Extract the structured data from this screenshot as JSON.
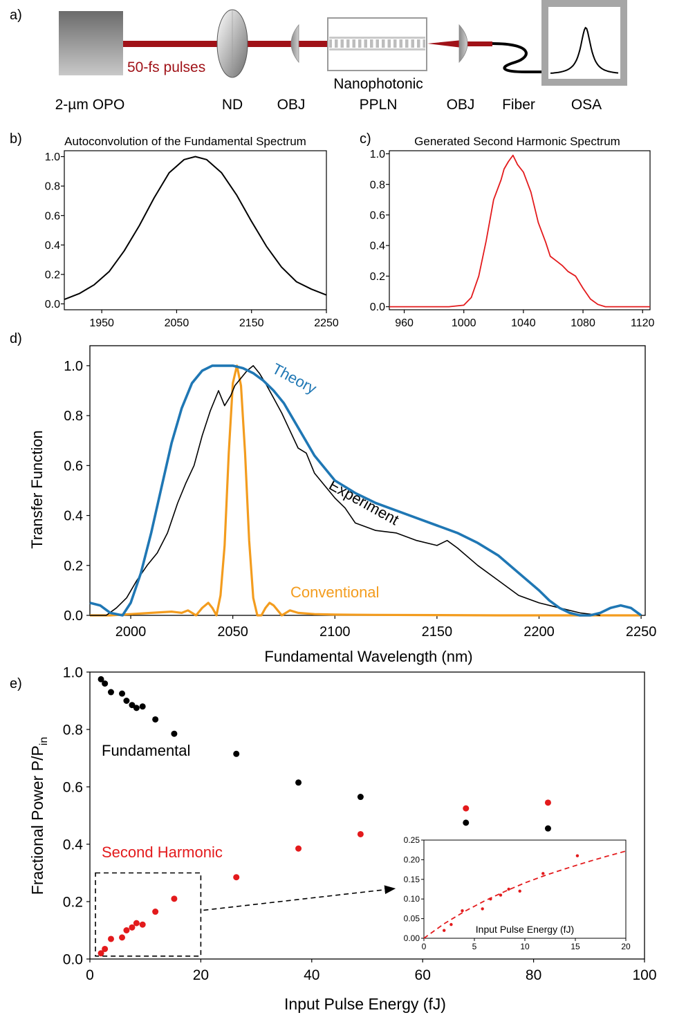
{
  "colors": {
    "black": "#000000",
    "red": "#e31a1c",
    "blue": "#1f77b4",
    "orange": "#f39c1e",
    "beam": "#a01218",
    "grey": "#a6a6a6"
  },
  "setup": {
    "panel_label": "a)",
    "pulse_label": "50-fs pulses",
    "components": [
      "2-µm OPO",
      "ND",
      "OBJ",
      "Nanophotonic",
      "PPLN",
      "OBJ",
      "Fiber",
      "OSA"
    ]
  },
  "chart_data": [
    {
      "id": "b",
      "panel_label": "b)",
      "type": "line",
      "title": "Autoconvolution of the Fundamental Spectrum",
      "xlabel": "",
      "ylabel": "",
      "xlim": [
        1900,
        2250
      ],
      "ylim": [
        -0.04,
        1.04
      ],
      "xticks": [
        1950,
        2050,
        2150,
        2250
      ],
      "yticks": [
        0.0,
        0.2,
        0.4,
        0.6,
        0.8,
        1.0
      ],
      "grid": false,
      "series": [
        {
          "x": [
            1900,
            1920,
            1940,
            1960,
            1980,
            2000,
            2020,
            2040,
            2060,
            2075,
            2090,
            2110,
            2130,
            2150,
            2170,
            2190,
            2210,
            2230,
            2250
          ],
          "y": [
            0.03,
            0.07,
            0.13,
            0.22,
            0.36,
            0.53,
            0.72,
            0.89,
            0.98,
            1.0,
            0.98,
            0.89,
            0.74,
            0.56,
            0.39,
            0.25,
            0.15,
            0.1,
            0.06
          ]
        }
      ]
    },
    {
      "id": "c",
      "panel_label": "c)",
      "type": "line",
      "title": "Generated Second Harmonic Spectrum",
      "xlabel": "",
      "ylabel": "",
      "xlim": [
        950,
        1125
      ],
      "ylim": [
        -0.02,
        1.02
      ],
      "xticks": [
        960,
        1000,
        1040,
        1080,
        1120
      ],
      "yticks": [
        0.0,
        0.2,
        0.4,
        0.6,
        0.8,
        1.0
      ],
      "grid": false,
      "series": [
        {
          "x": [
            950,
            990,
            1000,
            1005,
            1010,
            1015,
            1020,
            1025,
            1027,
            1030,
            1033,
            1036,
            1040,
            1045,
            1050,
            1055,
            1058,
            1062,
            1066,
            1070,
            1075,
            1080,
            1085,
            1090,
            1095,
            1100,
            1125
          ],
          "y": [
            0.0,
            0.0,
            0.01,
            0.06,
            0.2,
            0.43,
            0.7,
            0.83,
            0.9,
            0.95,
            0.99,
            0.93,
            0.88,
            0.75,
            0.55,
            0.42,
            0.33,
            0.3,
            0.27,
            0.23,
            0.2,
            0.12,
            0.05,
            0.015,
            0.0,
            0.0,
            0.0
          ]
        }
      ]
    },
    {
      "id": "d",
      "panel_label": "d)",
      "type": "line",
      "title": "",
      "xlabel": "Fundamental Wavelength (nm)",
      "ylabel": "Transfer Function",
      "xlim": [
        1980,
        2252
      ],
      "ylim": [
        0.0,
        1.08
      ],
      "xticks": [
        2000,
        2050,
        2100,
        2150,
        2200,
        2250
      ],
      "yticks": [
        0.0,
        0.2,
        0.4,
        0.6,
        0.8,
        1.0
      ],
      "grid": false,
      "series": [
        {
          "name": "Theory",
          "color": "blue",
          "x": [
            1980,
            1985,
            1990,
            1996,
            2000,
            2005,
            2010,
            2015,
            2020,
            2025,
            2030,
            2035,
            2040,
            2045,
            2050,
            2055,
            2060,
            2065,
            2070,
            2075,
            2080,
            2085,
            2090,
            2100,
            2110,
            2120,
            2130,
            2140,
            2150,
            2160,
            2170,
            2180,
            2190,
            2200,
            2205,
            2210,
            2215,
            2220,
            2225,
            2230,
            2235,
            2240,
            2245,
            2250
          ],
          "y": [
            0.05,
            0.04,
            0.01,
            0.0,
            0.05,
            0.17,
            0.33,
            0.51,
            0.69,
            0.83,
            0.93,
            0.98,
            1.0,
            1.0,
            1.0,
            0.99,
            0.97,
            0.94,
            0.9,
            0.85,
            0.78,
            0.71,
            0.64,
            0.54,
            0.49,
            0.45,
            0.42,
            0.39,
            0.36,
            0.33,
            0.29,
            0.24,
            0.17,
            0.1,
            0.06,
            0.03,
            0.01,
            0.0,
            0.0,
            0.01,
            0.03,
            0.04,
            0.03,
            0.0
          ]
        },
        {
          "name": "Experiment",
          "color": "black",
          "x": [
            1980,
            1988,
            1993,
            1998,
            2003,
            2008,
            2013,
            2018,
            2023,
            2027,
            2031,
            2035,
            2039,
            2043,
            2046,
            2049,
            2051,
            2054,
            2057,
            2060,
            2063,
            2066,
            2070,
            2074,
            2078,
            2082,
            2086,
            2090,
            2095,
            2100,
            2105,
            2110,
            2120,
            2130,
            2140,
            2150,
            2155,
            2160,
            2170,
            2180,
            2190,
            2200,
            2210,
            2220,
            2230
          ],
          "y": [
            0.0,
            0.0,
            0.03,
            0.07,
            0.14,
            0.2,
            0.25,
            0.33,
            0.45,
            0.53,
            0.6,
            0.72,
            0.82,
            0.9,
            0.84,
            0.88,
            0.92,
            0.95,
            0.98,
            1.0,
            0.97,
            0.93,
            0.87,
            0.81,
            0.74,
            0.67,
            0.65,
            0.57,
            0.52,
            0.47,
            0.43,
            0.37,
            0.34,
            0.33,
            0.3,
            0.28,
            0.3,
            0.27,
            0.2,
            0.14,
            0.08,
            0.05,
            0.03,
            0.01,
            0.0
          ]
        },
        {
          "name": "Conventional",
          "color": "orange",
          "x": [
            1980,
            1990,
            2000,
            2010,
            2020,
            2025,
            2028,
            2032,
            2035,
            2038,
            2040,
            2042,
            2044,
            2046,
            2048,
            2050,
            2052,
            2054,
            2056,
            2058,
            2060,
            2062,
            2064,
            2066,
            2068,
            2070,
            2072,
            2074,
            2078,
            2082,
            2090,
            2100,
            2120,
            2150,
            2180,
            2200,
            2220,
            2250
          ],
          "y": [
            0.0,
            0.0,
            0.005,
            0.01,
            0.015,
            0.01,
            0.02,
            0.0,
            0.03,
            0.05,
            0.03,
            0.0,
            0.08,
            0.28,
            0.65,
            0.93,
            1.0,
            0.92,
            0.65,
            0.3,
            0.07,
            0.0,
            0.0,
            0.03,
            0.05,
            0.04,
            0.02,
            0.0,
            0.02,
            0.01,
            0.005,
            0.003,
            0.002,
            0.001,
            0.0,
            0.0,
            0.0,
            0.0
          ]
        }
      ]
    },
    {
      "id": "e",
      "panel_label": "e)",
      "type": "scatter",
      "title": "",
      "xlabel": "Input Pulse Energy (fJ)",
      "ylabel_main": "Fractional Power P/P",
      "ylabel_sub": "in",
      "xlim": [
        0,
        100
      ],
      "ylim": [
        0.0,
        1.0
      ],
      "xticks": [
        0,
        20,
        40,
        60,
        80,
        100
      ],
      "yticks": [
        0.0,
        0.2,
        0.4,
        0.6,
        0.8,
        1.0
      ],
      "grid": false,
      "series": [
        {
          "name": "Fundamental",
          "color": "black",
          "x": [
            2.0,
            2.7,
            3.8,
            5.8,
            6.6,
            7.6,
            8.4,
            9.5,
            11.8,
            15.2,
            26.4,
            37.6,
            48.8,
            67.8,
            82.6
          ],
          "y": [
            0.975,
            0.96,
            0.93,
            0.925,
            0.9,
            0.885,
            0.875,
            0.88,
            0.835,
            0.785,
            0.715,
            0.615,
            0.565,
            0.475,
            0.455
          ]
        },
        {
          "name": "Second Harmonic",
          "color": "red",
          "x": [
            2.0,
            2.7,
            3.8,
            5.8,
            6.6,
            7.6,
            8.4,
            9.5,
            11.8,
            15.2,
            26.4,
            37.6,
            48.8,
            67.8,
            82.6
          ],
          "y": [
            0.02,
            0.035,
            0.07,
            0.075,
            0.1,
            0.11,
            0.125,
            0.12,
            0.165,
            0.21,
            0.285,
            0.385,
            0.435,
            0.525,
            0.545
          ]
        }
      ],
      "zoom_box": {
        "xlim": [
          1,
          20
        ],
        "ylim": [
          0.01,
          0.3
        ]
      },
      "inset": {
        "xlabel": "Input Pulse Energy (fJ)",
        "xlim": [
          0,
          20
        ],
        "ylim": [
          0.0,
          0.25
        ],
        "xticks": [
          0,
          5,
          10,
          15,
          20
        ],
        "yticks": [
          0.0,
          0.05,
          0.1,
          0.15,
          0.2,
          0.25
        ],
        "points": {
          "x": [
            2.0,
            2.7,
            3.8,
            5.8,
            6.6,
            7.6,
            8.4,
            9.5,
            11.8,
            15.2
          ],
          "y": [
            0.02,
            0.035,
            0.07,
            0.075,
            0.1,
            0.11,
            0.125,
            0.12,
            0.165,
            0.21
          ]
        },
        "fit": {
          "x": [
            0,
            2,
            4,
            6,
            8,
            10,
            12,
            14,
            16,
            18,
            20
          ],
          "y": [
            0.0,
            0.037,
            0.068,
            0.095,
            0.119,
            0.141,
            0.16,
            0.177,
            0.193,
            0.208,
            0.222
          ]
        }
      }
    }
  ]
}
